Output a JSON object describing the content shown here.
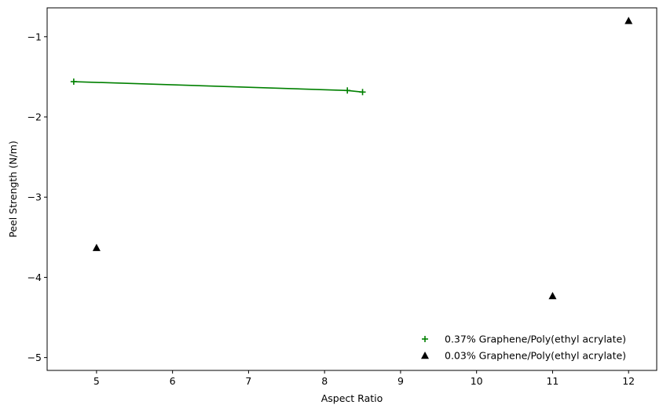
{
  "chart_data": {
    "type": "scatter",
    "title": "",
    "xlabel": "Aspect Ratio",
    "ylabel": "Peel Strength (N/m)",
    "xlim": [
      4.35,
      12.37
    ],
    "ylim": [
      -5.16,
      -0.64
    ],
    "xticks": [
      5,
      6,
      7,
      8,
      9,
      10,
      11,
      12
    ],
    "yticks": [
      -5,
      -4,
      -3,
      -2,
      -1
    ],
    "xtick_labels": [
      "5",
      "6",
      "7",
      "8",
      "9",
      "10",
      "11",
      "12"
    ],
    "ytick_labels": [
      "−5",
      "−4",
      "−3",
      "−2",
      "−1"
    ],
    "grid": false,
    "legend_position": "lower-right",
    "series": [
      {
        "name": "0.37% Graphene/Poly(ethyl acrylate)",
        "marker": "plus",
        "color": "#008000",
        "line": true,
        "x": [
          4.7,
          8.3,
          8.5
        ],
        "y": [
          -1.56,
          -1.67,
          -1.69
        ]
      },
      {
        "name": "0.03% Graphene/Poly(ethyl acrylate)",
        "marker": "triangle",
        "color": "#000000",
        "line": false,
        "x": [
          5.0,
          11.0,
          12.0
        ],
        "y": [
          -3.63,
          -4.23,
          -0.8
        ]
      }
    ]
  }
}
